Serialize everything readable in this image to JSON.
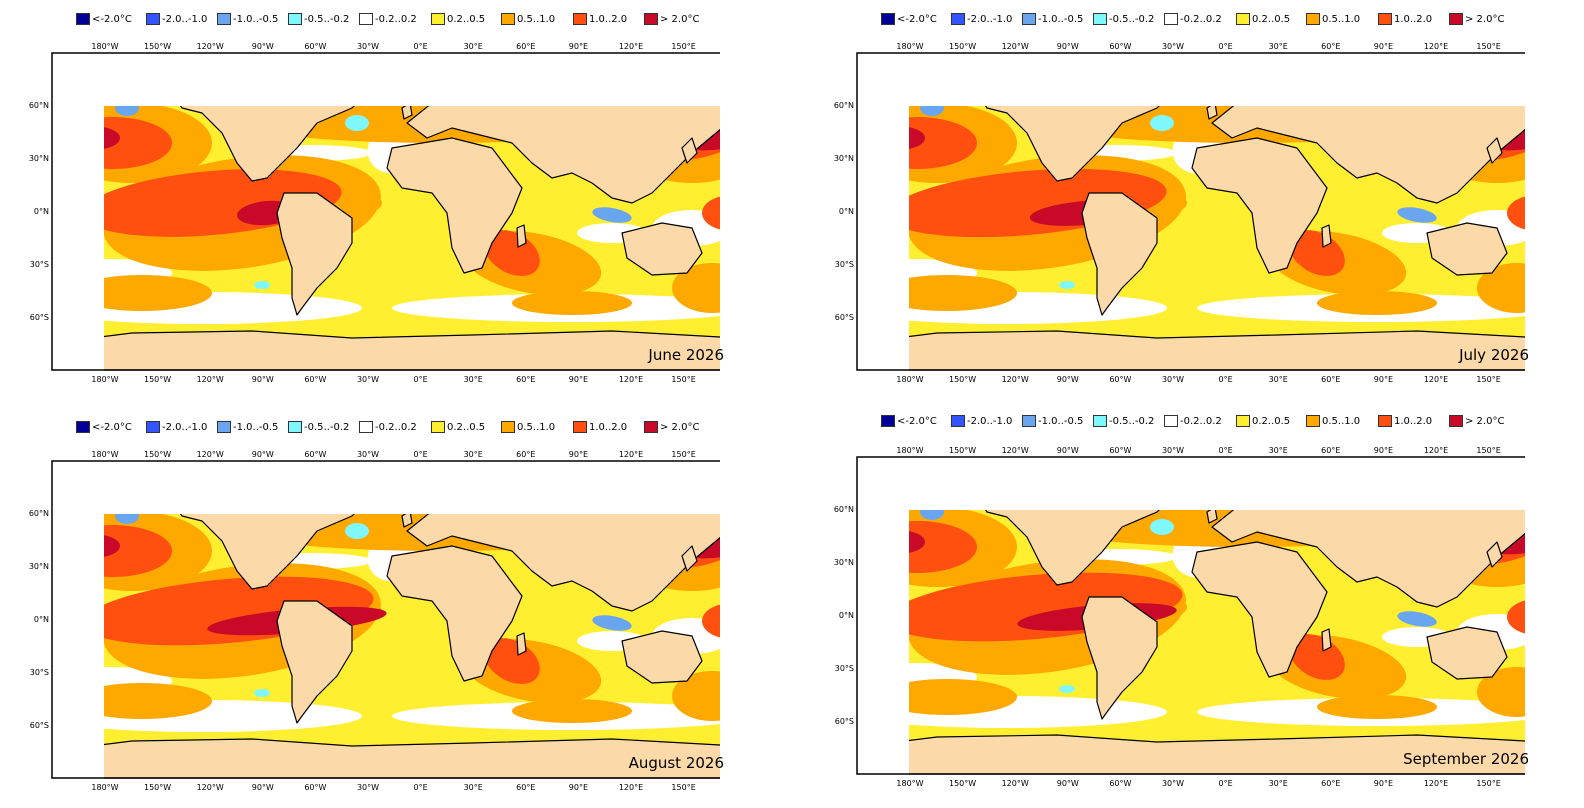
{
  "legend": {
    "swatches": [
      {
        "label": "<-2.0°C",
        "color": "#000099"
      },
      {
        "label": "-2.0..-1.0",
        "color": "#3355ff"
      },
      {
        "label": "-1.0..-0.5",
        "color": "#6aa6f0"
      },
      {
        "label": "-0.5..-0.2",
        "color": "#7ff7ff"
      },
      {
        "label": "-0.2..0.2",
        "color": "#ffffff"
      },
      {
        "label": "0.2..0.5",
        "color": "#ffef30"
      },
      {
        "label": "0.5..1.0",
        "color": "#ffa800"
      },
      {
        "label": "1.0..2.0",
        "color": "#ff5010"
      },
      {
        "label": "> 2.0°C",
        "color": "#c80a28"
      }
    ]
  },
  "axes": {
    "lon_ticks": [
      "180°W",
      "150°W",
      "120°W",
      "90°W",
      "60°W",
      "30°W",
      "0°E",
      "30°E",
      "60°E",
      "90°E",
      "120°E",
      "150°E"
    ],
    "lat_ticks": [
      "60°N",
      "30°N",
      "0°N",
      "30°S",
      "60°S"
    ]
  },
  "colors": {
    "land": "#fcd9a8",
    "ocean_base": "#ffef30",
    "neutral": "#ffffff",
    "warm": "#ffa800",
    "hot": "#ff5010",
    "very_hot": "#c80a28",
    "cool": "#6aa6f0",
    "cold": "#3355ff",
    "slightly_cool": "#7ff7ff",
    "frame": "#000000"
  },
  "panels": [
    {
      "month_label": "June 2026"
    },
    {
      "month_label": "July 2026"
    },
    {
      "month_label": "August 2026"
    },
    {
      "month_label": "September 2026"
    }
  ]
}
